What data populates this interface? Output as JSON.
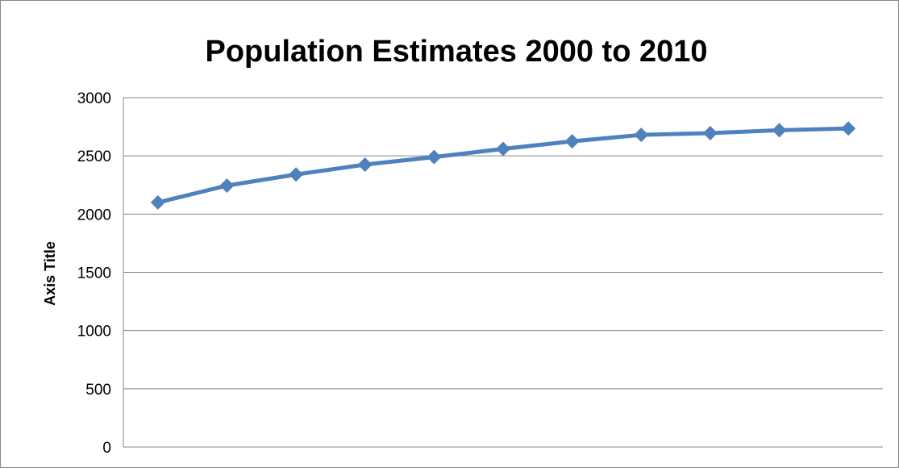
{
  "chart_data": {
    "type": "line",
    "title": "Population Estimates 2000 to 2010",
    "xlabel": "",
    "ylabel": "Axis Title",
    "ylim": [
      0,
      3000
    ],
    "yticks": [
      0,
      500,
      1000,
      1500,
      2000,
      2500,
      3000
    ],
    "grid": true,
    "legend": "none",
    "x": [
      1,
      2,
      3,
      4,
      5,
      6,
      7,
      8,
      9,
      10,
      11
    ],
    "series": [
      {
        "name": "",
        "color": "#4F81BD",
        "marker": "diamond",
        "values": [
          2100,
          2245,
          2340,
          2425,
          2490,
          2560,
          2625,
          2680,
          2695,
          2720,
          2735
        ]
      }
    ]
  }
}
